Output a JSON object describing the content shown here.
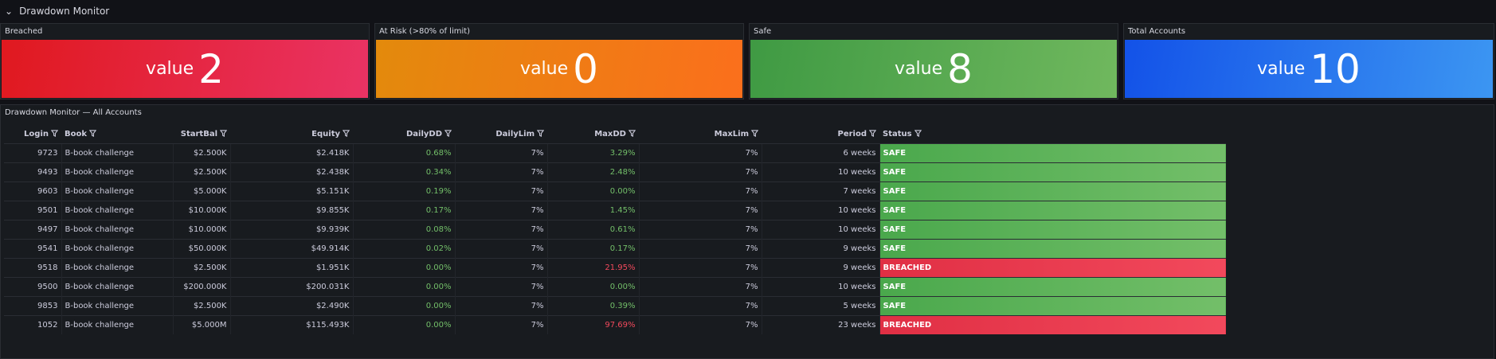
{
  "header": {
    "title": "Drawdown Monitor"
  },
  "stats": [
    {
      "title": "Breached",
      "prefix": "value",
      "value": 2,
      "colors": [
        "#e0191f",
        "#ea3364"
      ]
    },
    {
      "title": "At Risk (>80% of limit)",
      "prefix": "value",
      "value": 0,
      "colors": [
        "#e38a0c",
        "#fb6f1c"
      ]
    },
    {
      "title": "Safe",
      "prefix": "value",
      "value": 8,
      "colors": [
        "#3f9a43",
        "#70b85e"
      ]
    },
    {
      "title": "Total Accounts",
      "prefix": "value",
      "value": 10,
      "colors": [
        "#1352e8",
        "#3c96f2"
      ]
    }
  ],
  "table": {
    "title": "Drawdown Monitor — All Accounts",
    "columns": [
      "Login",
      "Book",
      "StartBal",
      "Equity",
      "DailyDD",
      "DailyLim",
      "MaxDD",
      "MaxLim",
      "Period",
      "Status"
    ],
    "rows": [
      {
        "cells": [
          "9723",
          "B-book challenge",
          "$2.500K",
          "$2.418K",
          "0.68%",
          "7%",
          "3.29%",
          "7%",
          "6 weeks",
          "SAFE"
        ],
        "color": "green"
      },
      {
        "cells": [
          "9493",
          "B-book challenge",
          "$2.500K",
          "$2.438K",
          "0.34%",
          "7%",
          "2.48%",
          "7%",
          "10 weeks",
          "SAFE"
        ],
        "color": "green"
      },
      {
        "cells": [
          "9603",
          "B-book challenge",
          "$5.000K",
          "$5.151K",
          "0.19%",
          "7%",
          "0.00%",
          "7%",
          "7 weeks",
          "SAFE"
        ],
        "color": "green"
      },
      {
        "cells": [
          "9501",
          "B-book challenge",
          "$10.000K",
          "$9.855K",
          "0.17%",
          "7%",
          "1.45%",
          "7%",
          "10 weeks",
          "SAFE"
        ],
        "color": "green"
      },
      {
        "cells": [
          "9497",
          "B-book challenge",
          "$10.000K",
          "$9.939K",
          "0.08%",
          "7%",
          "0.61%",
          "7%",
          "10 weeks",
          "SAFE"
        ],
        "color": "green"
      },
      {
        "cells": [
          "9541",
          "B-book challenge",
          "$50.000K",
          "$49.914K",
          "0.02%",
          "7%",
          "0.17%",
          "7%",
          "9 weeks",
          "SAFE"
        ],
        "color": "green"
      },
      {
        "cells": [
          "9518",
          "B-book challenge",
          "$2.500K",
          "$1.951K",
          "0.00%",
          "7%",
          "21.95%",
          "7%",
          "9 weeks",
          "BREACHED"
        ],
        "color": "red"
      },
      {
        "cells": [
          "9500",
          "B-book challenge",
          "$200.000K",
          "$200.031K",
          "0.00%",
          "7%",
          "0.00%",
          "7%",
          "10 weeks",
          "SAFE"
        ],
        "color": "green"
      },
      {
        "cells": [
          "9853",
          "B-book challenge",
          "$2.500K",
          "$2.490K",
          "0.00%",
          "7%",
          "0.39%",
          "7%",
          "5 weeks",
          "SAFE"
        ],
        "color": "green"
      },
      {
        "cells": [
          "1052",
          "B-book challenge",
          "$5.000M",
          "$115.493K",
          "0.00%",
          "7%",
          "97.69%",
          "7%",
          "23 weeks",
          "BREACHED"
        ],
        "color": "red"
      }
    ]
  }
}
